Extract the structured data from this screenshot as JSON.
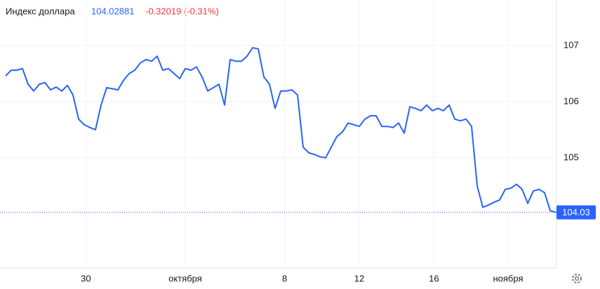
{
  "chart_data": {
    "type": "line",
    "title": "Индекс доллара",
    "price": "104.02881",
    "change": "-0.32019 (-0.31%)",
    "color": "#2962ff",
    "values": [
      106.46,
      106.56,
      106.56,
      106.59,
      106.31,
      106.19,
      106.31,
      106.34,
      106.21,
      106.26,
      106.19,
      106.29,
      106.12,
      105.69,
      105.59,
      105.54,
      105.5,
      105.94,
      106.25,
      106.23,
      106.21,
      106.38,
      106.5,
      106.56,
      106.69,
      106.75,
      106.72,
      106.81,
      106.56,
      106.59,
      106.5,
      106.41,
      106.59,
      106.56,
      106.62,
      106.44,
      106.19,
      106.25,
      106.31,
      105.94,
      106.75,
      106.72,
      106.72,
      106.81,
      106.96,
      106.94,
      106.44,
      106.31,
      105.88,
      106.19,
      106.19,
      106.21,
      106.12,
      105.19,
      105.09,
      105.06,
      105.02,
      105.0,
      105.19,
      105.38,
      105.46,
      105.62,
      105.59,
      105.56,
      105.69,
      105.75,
      105.75,
      105.56,
      105.56,
      105.54,
      105.62,
      105.44,
      105.91,
      105.88,
      105.84,
      105.94,
      105.84,
      105.88,
      105.84,
      105.94,
      105.69,
      105.66,
      105.69,
      105.56,
      104.5,
      104.12,
      104.16,
      104.21,
      104.25,
      104.44,
      104.46,
      104.53,
      104.44,
      104.19,
      104.41,
      104.44,
      104.38,
      104.06,
      104.03
    ],
    "xlim": [
      0,
      98
    ],
    "xticks": [
      {
        "value": 14.3,
        "label": "30"
      },
      {
        "value": 32.0,
        "label": "октября"
      },
      {
        "value": 49.7,
        "label": "8"
      },
      {
        "value": 63.0,
        "label": "12"
      },
      {
        "value": 76.3,
        "label": "16"
      },
      {
        "value": 89.5,
        "label": "ноября"
      }
    ],
    "ylim": [
      103.04,
      107.81
    ],
    "yticks": [
      105,
      106,
      107
    ],
    "last_price": {
      "value": 104.03,
      "label": "104.03"
    },
    "grid": true
  }
}
